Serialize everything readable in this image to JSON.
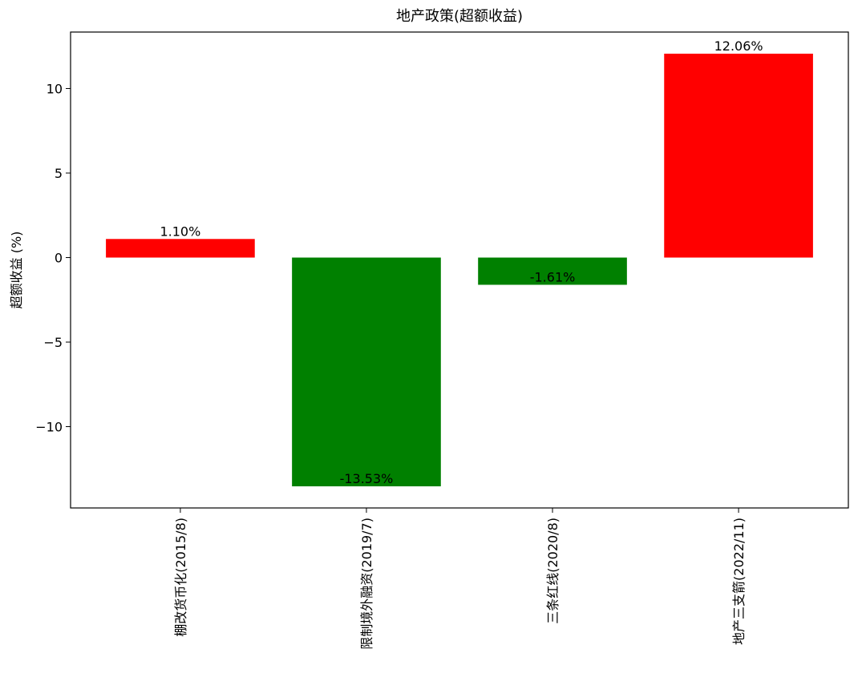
{
  "chart_data": {
    "type": "bar",
    "title": "地产政策(超额收益)",
    "y_label": "超额收益 (%)",
    "categories": [
      "棚改货币化(2015/8)",
      "限制境外融资(2019/7)",
      "三条红线(2020/8)",
      "地产三支箭(2022/11)"
    ],
    "values": [
      1.1,
      -13.53,
      -1.61,
      12.06
    ],
    "value_labels": [
      "1.10%",
      "-13.53%",
      "-1.61%",
      "12.06%"
    ],
    "colors": [
      "#ff0000",
      "#008000",
      "#008000",
      "#ff0000"
    ],
    "ylim": [
      -14.81,
      13.34
    ],
    "yticks": [
      {
        "value": -10,
        "label": "−10"
      },
      {
        "value": -5,
        "label": "−5"
      },
      0,
      5,
      10
    ],
    "grid": false
  }
}
